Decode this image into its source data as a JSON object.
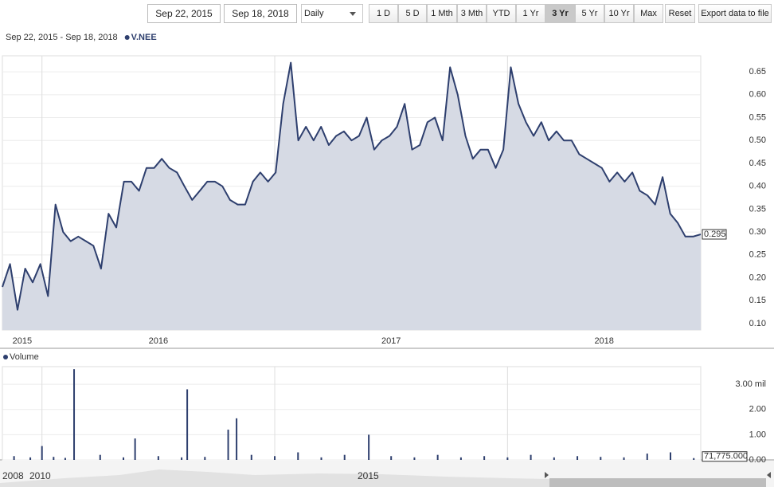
{
  "toolbar": {
    "start_date": "Sep 22, 2015",
    "end_date": "Sep 18, 2018",
    "interval": "Daily",
    "ranges": [
      "1 D",
      "5 D",
      "1 Mth",
      "3 Mth",
      "YTD",
      "1 Yr",
      "3 Yr",
      "5 Yr",
      "10 Yr",
      "Max"
    ],
    "active_range": "3 Yr",
    "reset": "Reset",
    "export": "Export data to file"
  },
  "chart_data": [
    {
      "type": "line",
      "legend_text": "Sep 22, 2015 - Sep 18, 2018",
      "x": [
        2015.83,
        2015.863,
        2015.895,
        2015.928,
        2015.96,
        2015.993,
        2016.026,
        2016.058,
        2016.091,
        2016.123,
        2016.156,
        2016.189,
        2016.221,
        2016.254,
        2016.286,
        2016.319,
        2016.352,
        2016.384,
        2016.417,
        2016.449,
        2016.482,
        2016.515,
        2016.547,
        2016.58,
        2016.612,
        2016.645,
        2016.678,
        2016.71,
        2016.743,
        2016.775,
        2016.808,
        2016.841,
        2016.873,
        2016.906,
        2016.938,
        2016.971,
        2017.004,
        2017.036,
        2017.069,
        2017.101,
        2017.134,
        2017.167,
        2017.199,
        2017.232,
        2017.264,
        2017.297,
        2017.33,
        2017.362,
        2017.395,
        2017.427,
        2017.46,
        2017.493,
        2017.525,
        2017.558,
        2017.59,
        2017.623,
        2017.656,
        2017.688,
        2017.721,
        2017.753,
        2017.786,
        2017.819,
        2017.851,
        2017.884,
        2017.916,
        2017.949,
        2017.982,
        2018.014,
        2018.047,
        2018.079,
        2018.112,
        2018.145,
        2018.177,
        2018.21,
        2018.242,
        2018.275,
        2018.308,
        2018.34,
        2018.373,
        2018.405,
        2018.438,
        2018.471,
        2018.503,
        2018.536,
        2018.568,
        2018.601,
        2018.634,
        2018.666,
        2018.699,
        2018.731,
        2018.764,
        2018.797,
        2018.83
      ],
      "series": [
        {
          "name": "V.NEE",
          "color": "#2e3f6e",
          "values": [
            0.18,
            0.23,
            0.13,
            0.22,
            0.19,
            0.23,
            0.16,
            0.36,
            0.3,
            0.28,
            0.29,
            0.28,
            0.27,
            0.22,
            0.34,
            0.31,
            0.41,
            0.41,
            0.39,
            0.44,
            0.44,
            0.46,
            0.44,
            0.43,
            0.4,
            0.37,
            0.39,
            0.41,
            0.41,
            0.4,
            0.37,
            0.36,
            0.36,
            0.41,
            0.43,
            0.41,
            0.43,
            0.58,
            0.67,
            0.5,
            0.53,
            0.5,
            0.53,
            0.49,
            0.51,
            0.52,
            0.5,
            0.51,
            0.55,
            0.48,
            0.5,
            0.51,
            0.53,
            0.58,
            0.48,
            0.49,
            0.54,
            0.55,
            0.5,
            0.66,
            0.6,
            0.51,
            0.46,
            0.48,
            0.48,
            0.44,
            0.48,
            0.66,
            0.58,
            0.54,
            0.51,
            0.54,
            0.5,
            0.52,
            0.5,
            0.5,
            0.47,
            0.46,
            0.45,
            0.44,
            0.41,
            0.43,
            0.41,
            0.43,
            0.39,
            0.38,
            0.36,
            0.42,
            0.34,
            0.32,
            0.29,
            0.29,
            0.295
          ]
        }
      ],
      "xlim": [
        2015.83,
        2018.83
      ],
      "xticks": [
        2015,
        2016,
        2017,
        2018
      ],
      "ylim": [
        0.086,
        0.685
      ],
      "yticks": [
        {
          "value": 0.1,
          "label": "0.10"
        },
        {
          "value": 0.15,
          "label": "0.15"
        },
        {
          "value": 0.2,
          "label": "0.20"
        },
        {
          "value": 0.25,
          "label": "0.25"
        },
        {
          "value": 0.3,
          "label": "0.30"
        },
        {
          "value": 0.35,
          "label": "0.35"
        },
        {
          "value": 0.4,
          "label": "0.40"
        },
        {
          "value": 0.45,
          "label": "0.45"
        },
        {
          "value": 0.5,
          "label": "0.50"
        },
        {
          "value": 0.55,
          "label": "0.55"
        },
        {
          "value": 0.6,
          "label": "0.60"
        },
        {
          "value": 0.65,
          "label": "0.65"
        }
      ],
      "area_color": "#d6dae4",
      "grid": true
    },
    {
      "type": "bar",
      "x": [
        2015.88,
        2015.95,
        2016.0,
        2016.05,
        2016.1,
        2016.138,
        2016.25,
        2016.35,
        2016.4,
        2016.5,
        2016.6,
        2016.624,
        2016.7,
        2016.8,
        2016.836,
        2016.9,
        2017.0,
        2017.1,
        2017.2,
        2017.3,
        2017.404,
        2017.5,
        2017.6,
        2017.7,
        2017.8,
        2017.9,
        2018.0,
        2018.1,
        2018.2,
        2018.3,
        2018.4,
        2018.5,
        2018.6,
        2018.7,
        2018.8
      ],
      "series": [
        {
          "name": "Volume",
          "color": "#2e3f6e",
          "values": [
            0.15,
            0.1,
            0.55,
            0.12,
            0.08,
            3.6,
            0.2,
            0.1,
            0.85,
            0.15,
            0.1,
            2.8,
            0.12,
            1.2,
            1.65,
            0.2,
            0.15,
            0.3,
            0.1,
            0.2,
            1.0,
            0.15,
            0.1,
            0.2,
            0.1,
            0.15,
            0.1,
            0.2,
            0.1,
            0.15,
            0.12,
            0.1,
            0.25,
            0.3,
            0.071775
          ]
        }
      ],
      "last_label": "71,775.000",
      "xlim": [
        2015.83,
        2018.83
      ],
      "xticks": [
        2016,
        2017,
        2018
      ],
      "ylim": [
        0,
        3.7
      ],
      "yticks": [
        {
          "value": 0,
          "label": "0.00"
        },
        {
          "value": 1,
          "label": "1.00"
        },
        {
          "value": 2,
          "label": "2.00"
        },
        {
          "value": 3,
          "label": "3.00 mil"
        }
      ],
      "grid": true
    }
  ],
  "navigator": {
    "labels": [
      "2008",
      "2010",
      "2015"
    ]
  }
}
